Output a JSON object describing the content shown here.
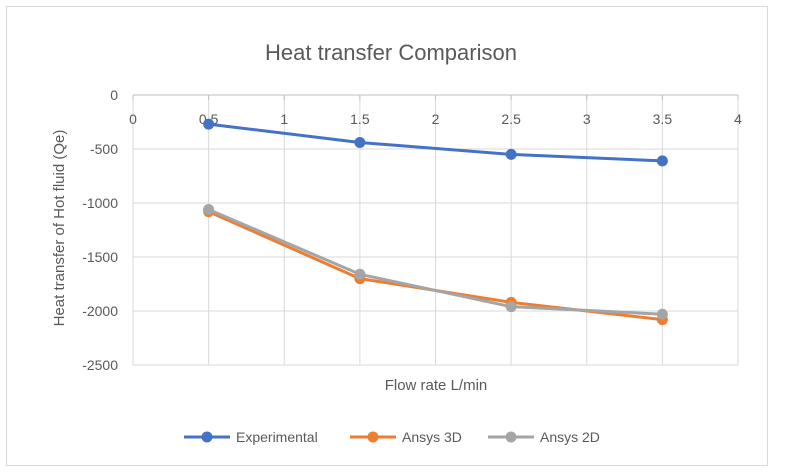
{
  "chart_data": {
    "type": "line",
    "title": "Heat transfer Comparison",
    "xlabel": "Flow rate L/min",
    "ylabel": "Heat transfer of Hot fluid (Qe)",
    "xlim": [
      0,
      4
    ],
    "ylim": [
      -2500,
      0
    ],
    "x_ticks": [
      "0",
      "0.5",
      "1",
      "1.5",
      "2",
      "2.5",
      "3",
      "3.5",
      "4"
    ],
    "y_ticks": [
      "0",
      "-500",
      "-1000",
      "-1500",
      "-2000",
      "-2500"
    ],
    "grid": true,
    "legend_position": "bottom",
    "x": [
      0.5,
      1.5,
      2.5,
      3.5
    ],
    "series": [
      {
        "name": "Experimental",
        "color": "#4472C4",
        "values": [
          -270,
          -440,
          -550,
          -610
        ]
      },
      {
        "name": "Ansys 3D",
        "color": "#ED7D31",
        "values": [
          -1080,
          -1700,
          -1920,
          -2080
        ]
      },
      {
        "name": "Ansys 2D",
        "color": "#A5A5A5",
        "values": [
          -1060,
          -1660,
          -1960,
          -2030
        ]
      }
    ]
  }
}
